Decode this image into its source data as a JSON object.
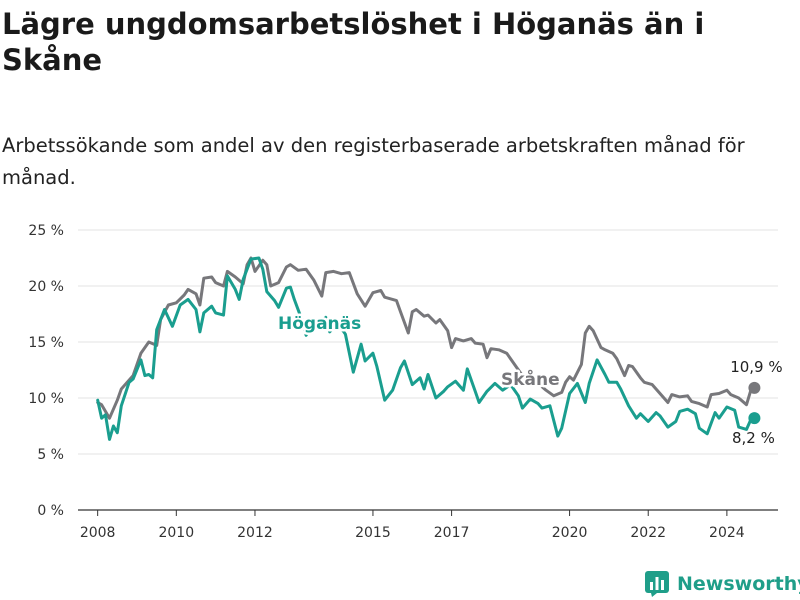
{
  "title": "Lägre ungdomsarbetslöshet i Höganäs än i Skåne",
  "subtitle": "Arbetssökande som andel av den registerbaserade arbetskraften månad för månad.",
  "brand": {
    "name": "Newsworthy",
    "logo_icon": "bar-chart-logo-icon",
    "color": "#1f9e89"
  },
  "chart_data": {
    "type": "line",
    "title": "Lägre ungdomsarbetslöshet i Höganäs än i Skåne",
    "xlabel": "",
    "ylabel": "",
    "ylim": [
      0,
      25
    ],
    "xlim": [
      2007.5,
      2025.3
    ],
    "y_ticks": [
      0,
      5,
      10,
      15,
      20,
      25
    ],
    "y_tick_labels": [
      "0 %",
      "5 %",
      "10 %",
      "15 %",
      "20 %",
      "25 %"
    ],
    "x_ticks": [
      2008,
      2010,
      2012,
      2015,
      2017,
      2020,
      2022,
      2024
    ],
    "x_tick_labels": [
      "2008",
      "2010",
      "2012",
      "2015",
      "2017",
      "2020",
      "2022",
      "2024"
    ],
    "grid": true,
    "series": [
      {
        "name": "Skåne",
        "color": "#77777b",
        "end_label": "10,9 %",
        "points": [
          [
            2008.0,
            9.6
          ],
          [
            2008.1,
            9.4
          ],
          [
            2008.3,
            8.2
          ],
          [
            2008.5,
            9.8
          ],
          [
            2008.6,
            10.8
          ],
          [
            2008.9,
            12.0
          ],
          [
            2009.1,
            14.0
          ],
          [
            2009.3,
            15.0
          ],
          [
            2009.5,
            14.7
          ],
          [
            2009.6,
            17.0
          ],
          [
            2009.8,
            18.3
          ],
          [
            2010.0,
            18.5
          ],
          [
            2010.2,
            19.2
          ],
          [
            2010.3,
            19.7
          ],
          [
            2010.5,
            19.3
          ],
          [
            2010.6,
            18.3
          ],
          [
            2010.7,
            20.7
          ],
          [
            2010.9,
            20.8
          ],
          [
            2011.0,
            20.3
          ],
          [
            2011.2,
            20.0
          ],
          [
            2011.3,
            21.3
          ],
          [
            2011.5,
            20.8
          ],
          [
            2011.7,
            20.2
          ],
          [
            2011.8,
            21.9
          ],
          [
            2011.9,
            22.5
          ],
          [
            2012.0,
            21.3
          ],
          [
            2012.2,
            22.3
          ],
          [
            2012.3,
            21.9
          ],
          [
            2012.4,
            20.0
          ],
          [
            2012.6,
            20.3
          ],
          [
            2012.8,
            21.7
          ],
          [
            2012.9,
            21.9
          ],
          [
            2013.1,
            21.4
          ],
          [
            2013.3,
            21.5
          ],
          [
            2013.5,
            20.5
          ],
          [
            2013.7,
            19.1
          ],
          [
            2013.8,
            21.2
          ],
          [
            2014.0,
            21.3
          ],
          [
            2014.2,
            21.1
          ],
          [
            2014.4,
            21.2
          ],
          [
            2014.6,
            19.3
          ],
          [
            2014.8,
            18.2
          ],
          [
            2015.0,
            19.4
          ],
          [
            2015.2,
            19.6
          ],
          [
            2015.3,
            19.0
          ],
          [
            2015.5,
            18.8
          ],
          [
            2015.6,
            18.7
          ],
          [
            2015.7,
            17.7
          ],
          [
            2015.9,
            15.8
          ],
          [
            2016.0,
            17.7
          ],
          [
            2016.1,
            17.9
          ],
          [
            2016.3,
            17.3
          ],
          [
            2016.4,
            17.4
          ],
          [
            2016.6,
            16.7
          ],
          [
            2016.7,
            17.0
          ],
          [
            2016.9,
            16.0
          ],
          [
            2017.0,
            14.5
          ],
          [
            2017.1,
            15.3
          ],
          [
            2017.3,
            15.1
          ],
          [
            2017.5,
            15.3
          ],
          [
            2017.6,
            14.9
          ],
          [
            2017.8,
            14.8
          ],
          [
            2017.9,
            13.6
          ],
          [
            2018.0,
            14.4
          ],
          [
            2018.2,
            14.3
          ],
          [
            2018.4,
            14.0
          ],
          [
            2018.6,
            13.0
          ],
          [
            2018.8,
            12.0
          ],
          [
            2019.0,
            11.8
          ],
          [
            2019.2,
            11.3
          ],
          [
            2019.4,
            10.7
          ],
          [
            2019.6,
            10.2
          ],
          [
            2019.8,
            10.5
          ],
          [
            2019.9,
            11.4
          ],
          [
            2020.0,
            11.9
          ],
          [
            2020.1,
            11.6
          ],
          [
            2020.3,
            13.0
          ],
          [
            2020.4,
            15.8
          ],
          [
            2020.5,
            16.4
          ],
          [
            2020.6,
            16.0
          ],
          [
            2020.8,
            14.5
          ],
          [
            2020.9,
            14.3
          ],
          [
            2021.1,
            14.0
          ],
          [
            2021.2,
            13.5
          ],
          [
            2021.4,
            12.0
          ],
          [
            2021.5,
            12.9
          ],
          [
            2021.6,
            12.8
          ],
          [
            2021.8,
            11.8
          ],
          [
            2021.9,
            11.4
          ],
          [
            2022.1,
            11.2
          ],
          [
            2022.3,
            10.4
          ],
          [
            2022.5,
            9.6
          ],
          [
            2022.6,
            10.3
          ],
          [
            2022.8,
            10.1
          ],
          [
            2023.0,
            10.2
          ],
          [
            2023.1,
            9.7
          ],
          [
            2023.3,
            9.5
          ],
          [
            2023.5,
            9.2
          ],
          [
            2023.6,
            10.3
          ],
          [
            2023.8,
            10.4
          ],
          [
            2024.0,
            10.7
          ],
          [
            2024.1,
            10.3
          ],
          [
            2024.3,
            10.0
          ],
          [
            2024.5,
            9.4
          ],
          [
            2024.6,
            10.6
          ],
          [
            2024.7,
            10.9
          ]
        ]
      },
      {
        "name": "Höganäs",
        "color": "#1a9e8f",
        "end_label": "8,2 %",
        "points": [
          [
            2008.0,
            9.8
          ],
          [
            2008.1,
            8.2
          ],
          [
            2008.2,
            8.5
          ],
          [
            2008.3,
            6.3
          ],
          [
            2008.4,
            7.5
          ],
          [
            2008.5,
            6.9
          ],
          [
            2008.6,
            9.3
          ],
          [
            2008.8,
            11.4
          ],
          [
            2008.9,
            11.7
          ],
          [
            2009.1,
            13.4
          ],
          [
            2009.2,
            12.0
          ],
          [
            2009.3,
            12.1
          ],
          [
            2009.4,
            11.8
          ],
          [
            2009.5,
            16.1
          ],
          [
            2009.7,
            17.9
          ],
          [
            2009.9,
            16.4
          ],
          [
            2010.1,
            18.3
          ],
          [
            2010.3,
            18.8
          ],
          [
            2010.5,
            17.9
          ],
          [
            2010.6,
            15.9
          ],
          [
            2010.7,
            17.6
          ],
          [
            2010.9,
            18.2
          ],
          [
            2011.0,
            17.6
          ],
          [
            2011.2,
            17.4
          ],
          [
            2011.3,
            20.9
          ],
          [
            2011.5,
            19.7
          ],
          [
            2011.6,
            18.8
          ],
          [
            2011.7,
            20.6
          ],
          [
            2011.9,
            22.4
          ],
          [
            2012.1,
            22.5
          ],
          [
            2012.2,
            21.5
          ],
          [
            2012.3,
            19.5
          ],
          [
            2012.5,
            18.7
          ],
          [
            2012.6,
            18.1
          ],
          [
            2012.8,
            19.8
          ],
          [
            2012.9,
            19.9
          ],
          [
            2013.0,
            18.8
          ],
          [
            2013.2,
            16.9
          ],
          [
            2013.3,
            15.6
          ],
          [
            2013.4,
            16.2
          ],
          [
            2013.6,
            16.5
          ],
          [
            2013.8,
            17.2
          ],
          [
            2013.9,
            15.9
          ],
          [
            2014.1,
            16.7
          ],
          [
            2014.3,
            15.7
          ],
          [
            2014.5,
            12.3
          ],
          [
            2014.7,
            14.8
          ],
          [
            2014.8,
            13.3
          ],
          [
            2015.0,
            14.0
          ],
          [
            2015.1,
            12.8
          ],
          [
            2015.3,
            9.8
          ],
          [
            2015.5,
            10.7
          ],
          [
            2015.7,
            12.7
          ],
          [
            2015.8,
            13.3
          ],
          [
            2016.0,
            11.2
          ],
          [
            2016.2,
            11.8
          ],
          [
            2016.3,
            10.8
          ],
          [
            2016.4,
            12.1
          ],
          [
            2016.6,
            10.0
          ],
          [
            2016.8,
            10.6
          ],
          [
            2016.9,
            11.0
          ],
          [
            2017.1,
            11.5
          ],
          [
            2017.3,
            10.7
          ],
          [
            2017.4,
            12.6
          ],
          [
            2017.6,
            10.6
          ],
          [
            2017.7,
            9.6
          ],
          [
            2017.9,
            10.6
          ],
          [
            2018.1,
            11.3
          ],
          [
            2018.3,
            10.7
          ],
          [
            2018.5,
            11.2
          ],
          [
            2018.7,
            10.2
          ],
          [
            2018.8,
            9.1
          ],
          [
            2019.0,
            9.9
          ],
          [
            2019.2,
            9.5
          ],
          [
            2019.3,
            9.1
          ],
          [
            2019.5,
            9.3
          ],
          [
            2019.7,
            6.6
          ],
          [
            2019.8,
            7.3
          ],
          [
            2020.0,
            10.4
          ],
          [
            2020.2,
            11.3
          ],
          [
            2020.4,
            9.6
          ],
          [
            2020.5,
            11.3
          ],
          [
            2020.7,
            13.4
          ],
          [
            2020.9,
            12.1
          ],
          [
            2021.0,
            11.4
          ],
          [
            2021.2,
            11.4
          ],
          [
            2021.3,
            10.8
          ],
          [
            2021.5,
            9.3
          ],
          [
            2021.7,
            8.2
          ],
          [
            2021.8,
            8.6
          ],
          [
            2022.0,
            7.9
          ],
          [
            2022.2,
            8.7
          ],
          [
            2022.3,
            8.4
          ],
          [
            2022.5,
            7.4
          ],
          [
            2022.7,
            7.9
          ],
          [
            2022.8,
            8.8
          ],
          [
            2023.0,
            9.0
          ],
          [
            2023.2,
            8.6
          ],
          [
            2023.3,
            7.3
          ],
          [
            2023.5,
            6.8
          ],
          [
            2023.7,
            8.7
          ],
          [
            2023.8,
            8.2
          ],
          [
            2024.0,
            9.2
          ],
          [
            2024.2,
            8.9
          ],
          [
            2024.3,
            7.4
          ],
          [
            2024.5,
            7.2
          ],
          [
            2024.6,
            8.0
          ],
          [
            2024.7,
            8.2
          ]
        ]
      }
    ],
    "annotations": [
      {
        "text": "Höganäs",
        "series": "Höganäs"
      },
      {
        "text": "Skåne",
        "series": "Skåne"
      }
    ]
  }
}
